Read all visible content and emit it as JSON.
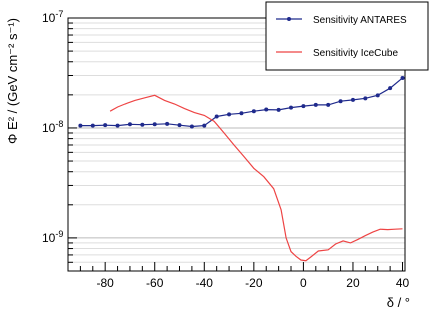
{
  "chart_data": {
    "type": "line",
    "xlabel": "δ / °",
    "ylabel": "Φ E² / (GeV cm⁻² s⁻¹)",
    "xlim": [
      -95,
      41
    ],
    "ylim": [
      5e-10,
      1e-07
    ],
    "yscale": "log",
    "grid": "horizontal",
    "legend_position": "top-right",
    "x_ticks": [
      -80,
      -60,
      -40,
      -20,
      0,
      20,
      40
    ],
    "y_ticks": [
      {
        "value": 1e-09,
        "mantissa": "10",
        "exp": "-9"
      },
      {
        "value": 1e-08,
        "mantissa": "10",
        "exp": "-8"
      },
      {
        "value": 1e-07,
        "mantissa": "10",
        "exp": "-7"
      }
    ],
    "series": [
      {
        "name": "Sensitivity ANTARES",
        "color": "#1f2a8c",
        "marker": "circle",
        "x": [
          -90,
          -85,
          -80,
          -75,
          -70,
          -65,
          -60,
          -55,
          -50,
          -45,
          -40,
          -35,
          -30,
          -25,
          -20,
          -15,
          -10,
          -5,
          0,
          5,
          10,
          15,
          20,
          25,
          30,
          35,
          40
        ],
        "y": [
          1.05e-08,
          1.05e-08,
          1.06e-08,
          1.05e-08,
          1.08e-08,
          1.07e-08,
          1.08e-08,
          1.09e-08,
          1.06e-08,
          1.03e-08,
          1.05e-08,
          1.27e-08,
          1.33e-08,
          1.36e-08,
          1.42e-08,
          1.47e-08,
          1.46e-08,
          1.53e-08,
          1.58e-08,
          1.62e-08,
          1.62e-08,
          1.75e-08,
          1.8e-08,
          1.86e-08,
          1.98e-08,
          2.3e-08,
          2.85e-08
        ]
      },
      {
        "name": "Sensitivity IceCube",
        "color": "#ee4444",
        "marker": "none",
        "x": [
          -78,
          -75,
          -72,
          -68,
          -64,
          -60,
          -56,
          -52,
          -48,
          -44,
          -40,
          -36,
          -32,
          -28,
          -24,
          -20,
          -16,
          -12,
          -9,
          -7,
          -5,
          -3,
          -1,
          1,
          3,
          6,
          10,
          13,
          16,
          19,
          22,
          25,
          28,
          31,
          34,
          37,
          40
        ],
        "y": [
          1.42e-08,
          1.55e-08,
          1.65e-08,
          1.78e-08,
          1.88e-08,
          1.98e-08,
          1.78e-08,
          1.65e-08,
          1.5e-08,
          1.38e-08,
          1.3e-08,
          1.15e-08,
          9e-09,
          7e-09,
          5.5e-09,
          4.3e-09,
          3.6e-09,
          2.8e-09,
          1.8e-09,
          1e-09,
          7.5e-10,
          6.8e-10,
          6.3e-10,
          6.2e-10,
          6.7e-10,
          7.6e-10,
          7.8e-10,
          8.8e-10,
          9.4e-10,
          9e-10,
          9.7e-10,
          1.05e-09,
          1.13e-09,
          1.2e-09,
          1.19e-09,
          1.2e-09,
          1.21e-09
        ]
      }
    ]
  }
}
